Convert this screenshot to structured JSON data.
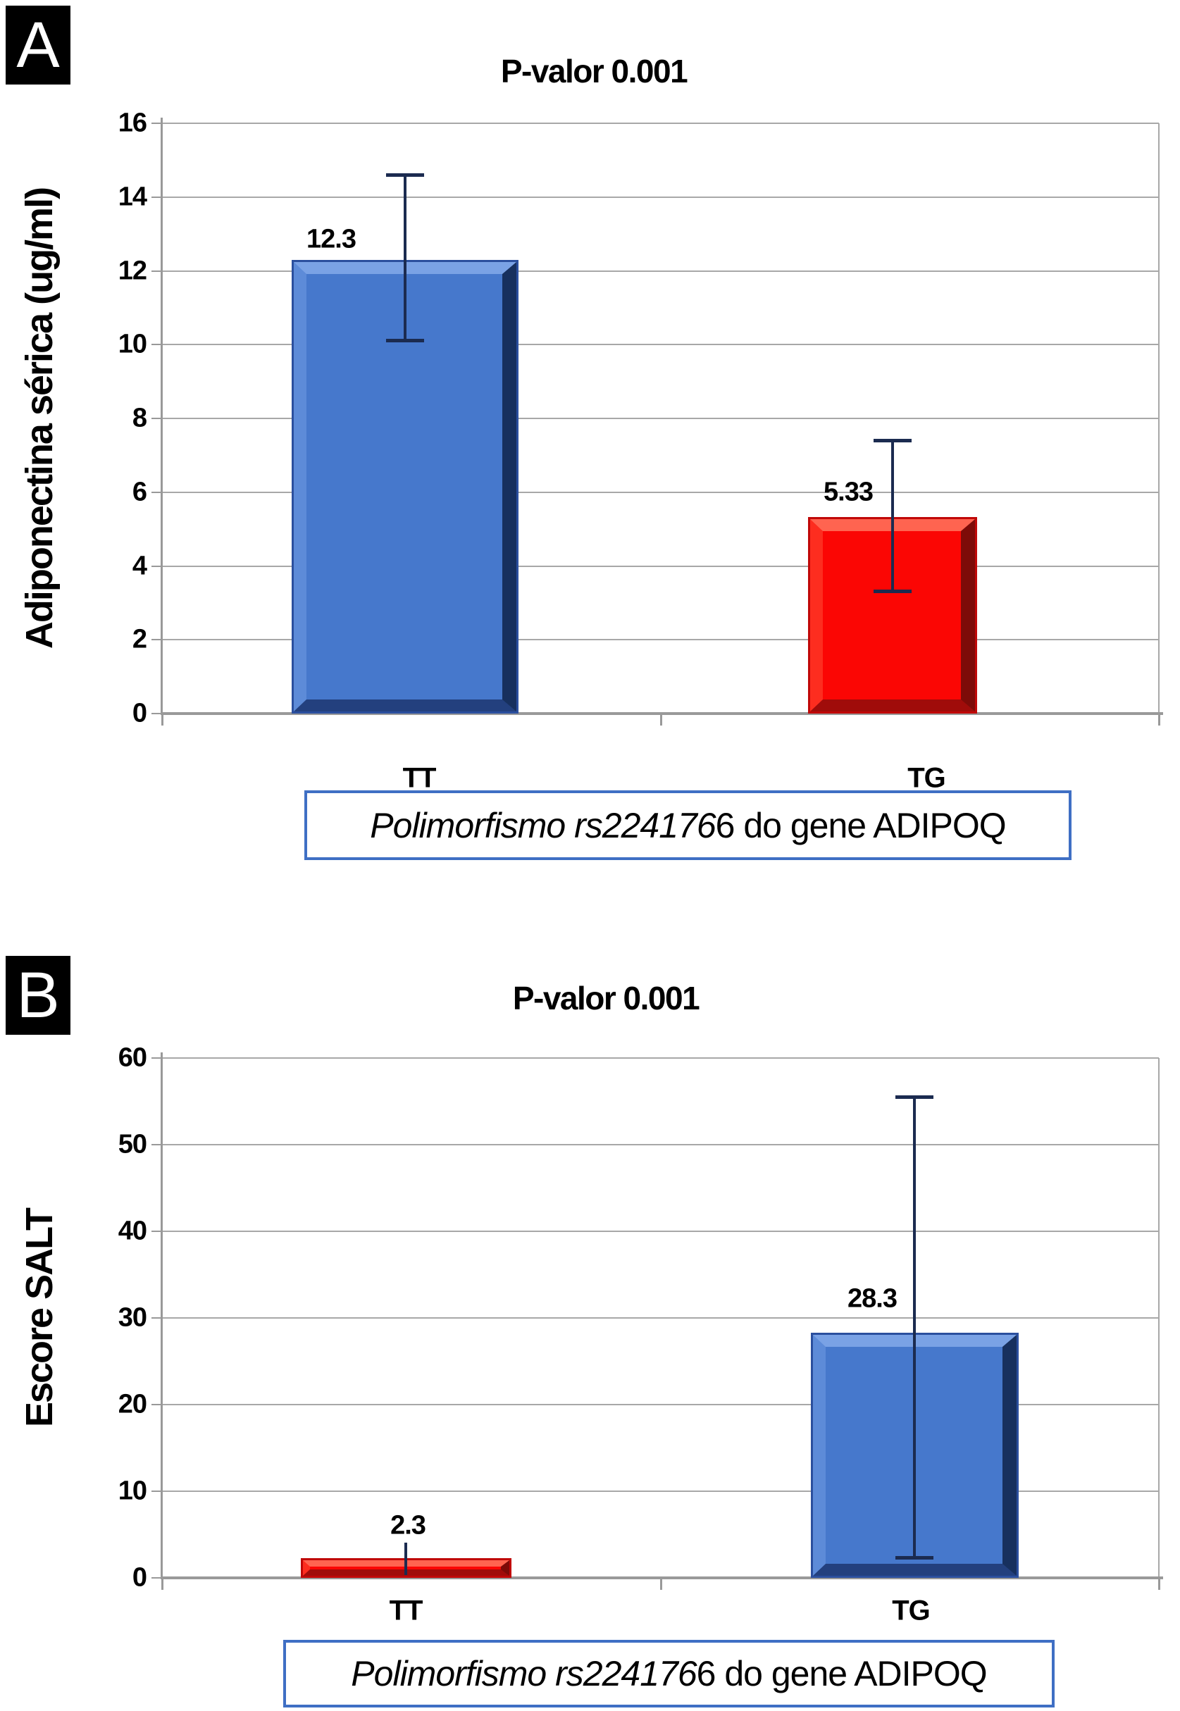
{
  "figure": {
    "panels": [
      {
        "label": "A",
        "x_box_italic": "Polimorfismo rs224176",
        "x_box_regular": "6 do gene ADIPOQ"
      },
      {
        "label": "B",
        "x_box_italic": "Polimorfismo rs224176",
        "x_box_regular": "6 do gene ADIPOQ"
      }
    ],
    "colors": {
      "bar_blue": "#4678cc",
      "bar_red": "#fb0604",
      "box_border": "#3f6fc4",
      "gridline": "#a8a8a8",
      "error_bar": "#1b2b50",
      "panel_label_bg": "#000000",
      "panel_label_text": "#ffffff"
    }
  },
  "chart_data": [
    {
      "type": "bar",
      "title": "P-valor 0.001",
      "ylabel": "Adiponectina sérica (ug/ml)",
      "xlabel": "Polimorfismo rs2241766 do gene ADIPOQ",
      "categories": [
        "TT",
        "TG"
      ],
      "values": [
        12.3,
        5.33
      ],
      "value_labels": [
        "12.3",
        "5.33"
      ],
      "bar_colors": [
        "#4678cc",
        "#fb0604"
      ],
      "error_bars": [
        {
          "low": 10.1,
          "high": 14.6
        },
        {
          "low": 3.3,
          "high": 7.4
        }
      ],
      "ylim": [
        0,
        16
      ],
      "yticks": [
        0,
        2,
        4,
        6,
        8,
        10,
        12,
        14,
        16
      ],
      "grid": true,
      "legend": false
    },
    {
      "type": "bar",
      "title": "P-valor 0.001",
      "ylabel": "Escore SALT",
      "xlabel": "Polimorfismo rs2241766 do gene ADIPOQ",
      "categories": [
        "TT",
        "TG"
      ],
      "values": [
        2.3,
        28.3
      ],
      "value_labels": [
        "2.3",
        "28.3"
      ],
      "bar_colors": [
        "#fb0604",
        "#4678cc"
      ],
      "error_bars": [
        {
          "low": 0.3,
          "high": 4.1
        },
        {
          "low": 2.3,
          "high": 55.5
        }
      ],
      "ylim": [
        0,
        60
      ],
      "yticks": [
        0,
        10,
        20,
        30,
        40,
        50,
        60
      ],
      "grid": true,
      "legend": false
    }
  ]
}
